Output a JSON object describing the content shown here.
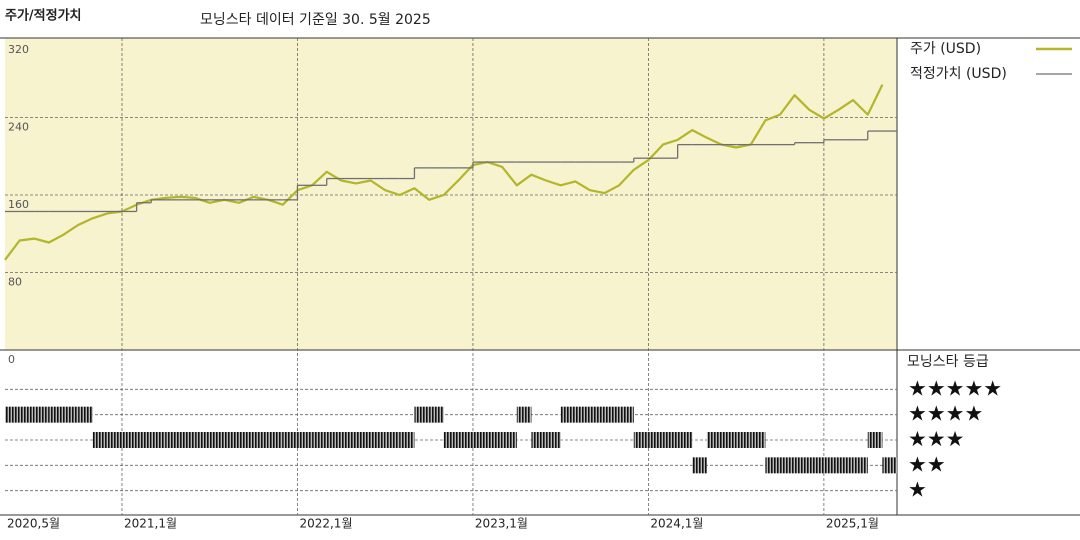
{
  "chart_data": {
    "type": "line",
    "title": "주가/적정가치",
    "subtitle": "모닝스타 데이터 기준일 30. 5월 2025",
    "x": [
      "2020-05",
      "2020-06",
      "2020-07",
      "2020-08",
      "2020-09",
      "2020-10",
      "2020-11",
      "2020-12",
      "2021-01",
      "2021-02",
      "2021-03",
      "2021-04",
      "2021-05",
      "2021-06",
      "2021-07",
      "2021-08",
      "2021-09",
      "2021-10",
      "2021-11",
      "2021-12",
      "2022-01",
      "2022-02",
      "2022-03",
      "2022-04",
      "2022-05",
      "2022-06",
      "2022-07",
      "2022-08",
      "2022-09",
      "2022-10",
      "2022-11",
      "2022-12",
      "2023-01",
      "2023-02",
      "2023-03",
      "2023-04",
      "2023-05",
      "2023-06",
      "2023-07",
      "2023-08",
      "2023-09",
      "2023-10",
      "2023-11",
      "2023-12",
      "2024-01",
      "2024-02",
      "2024-03",
      "2024-04",
      "2024-05",
      "2024-06",
      "2024-07",
      "2024-08",
      "2024-09",
      "2024-10",
      "2024-11",
      "2024-12",
      "2025-01",
      "2025-02",
      "2025-03",
      "2025-04",
      "2025-05"
    ],
    "xlim": [
      "2020-05",
      "2025-06"
    ],
    "xticks": [
      {
        "value": "2020-05",
        "label": "2020,5월"
      },
      {
        "value": "2021-01",
        "label": "2021,1월"
      },
      {
        "value": "2022-01",
        "label": "2022,1월"
      },
      {
        "value": "2023-01",
        "label": "2023,1월"
      },
      {
        "value": "2024-01",
        "label": "2024,1월"
      },
      {
        "value": "2025-01",
        "label": "2025,1월"
      }
    ],
    "ylim": [
      0,
      320
    ],
    "yticks": [
      0,
      80,
      160,
      240,
      320
    ],
    "grid": true,
    "series": [
      {
        "name": "주가 (USD)",
        "color": "#b3b52a",
        "values": [
          93,
          113,
          115,
          111,
          119,
          129,
          136,
          141,
          143,
          150,
          155,
          157,
          158,
          157,
          152,
          155,
          152,
          158,
          155,
          150,
          165,
          170,
          184,
          175,
          172,
          175,
          165,
          160,
          167,
          155,
          160,
          175,
          191,
          194,
          189,
          170,
          181,
          175,
          170,
          174,
          165,
          162,
          170,
          186,
          196,
          212,
          217,
          227,
          219,
          212,
          209,
          212,
          237,
          243,
          263,
          248,
          239,
          248,
          258,
          243,
          274
        ]
      },
      {
        "name": "적정가치 (USD)",
        "color": "#707070",
        "step": true,
        "values": [
          143,
          143,
          143,
          143,
          143,
          143,
          143,
          143,
          143,
          152,
          155,
          155,
          155,
          155,
          155,
          155,
          155,
          155,
          155,
          155,
          170,
          170,
          177,
          177,
          177,
          177,
          177,
          177,
          188,
          188,
          188,
          188,
          194,
          194,
          194,
          194,
          194,
          194,
          194,
          194,
          194,
          194,
          194,
          198,
          198,
          198,
          212,
          212,
          212,
          212,
          212,
          212,
          212,
          212,
          214,
          214,
          217,
          217,
          217,
          226,
          226
        ]
      }
    ],
    "rating": {
      "title": "모닝스타 등급",
      "ylim": [
        0,
        6
      ],
      "yticks": [
        {
          "value": 5,
          "label": "★★★★★"
        },
        {
          "value": 4,
          "label": "★★★★"
        },
        {
          "value": 3,
          "label": "★★★"
        },
        {
          "value": 2,
          "label": "★★"
        },
        {
          "value": 1,
          "label": "★"
        }
      ],
      "values": [
        4,
        4,
        4,
        4,
        4,
        4,
        3,
        3,
        3,
        3,
        3,
        3,
        3,
        3,
        3,
        3,
        3,
        3,
        3,
        3,
        3,
        3,
        3,
        3,
        3,
        3,
        3,
        3,
        4,
        4,
        3,
        3,
        3,
        3,
        3,
        4,
        3,
        3,
        4,
        4,
        4,
        4,
        4,
        3,
        3,
        3,
        3,
        2,
        3,
        3,
        3,
        3,
        2,
        2,
        2,
        2,
        2,
        2,
        2,
        3,
        2
      ]
    }
  }
}
